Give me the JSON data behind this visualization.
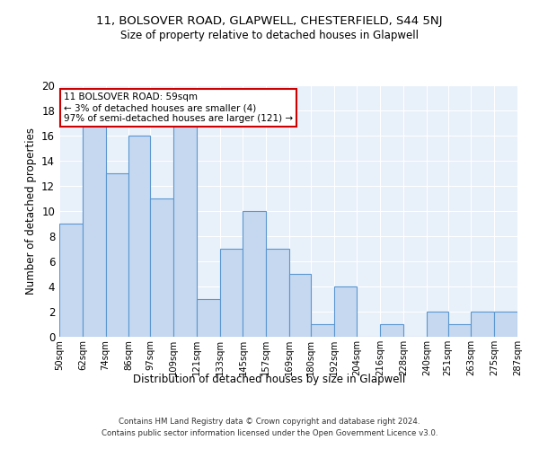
{
  "title1": "11, BOLSOVER ROAD, GLAPWELL, CHESTERFIELD, S44 5NJ",
  "title2": "Size of property relative to detached houses in Glapwell",
  "xlabel": "Distribution of detached houses by size in Glapwell",
  "ylabel": "Number of detached properties",
  "annotation_line1": "11 BOLSOVER ROAD: 59sqm",
  "annotation_line2": "← 3% of detached houses are smaller (4)",
  "annotation_line3": "97% of semi-detached houses are larger (121) →",
  "bin_edges": [
    50,
    62,
    74,
    86,
    97,
    109,
    121,
    133,
    145,
    157,
    169,
    180,
    192,
    204,
    216,
    228,
    240,
    251,
    263,
    275,
    287
  ],
  "bin_counts": [
    9,
    17,
    13,
    16,
    11,
    17,
    3,
    7,
    10,
    7,
    5,
    1,
    4,
    0,
    1,
    0,
    2,
    1,
    2,
    2
  ],
  "bar_color": "#c5d8f0",
  "bar_edge_color": "#5a96d0",
  "background_color": "#e8f0fa",
  "annotation_box_color": "#ffffff",
  "annotation_box_edge": "#cc0000",
  "ylim": [
    0,
    20
  ],
  "yticks": [
    0,
    2,
    4,
    6,
    8,
    10,
    12,
    14,
    16,
    18,
    20
  ],
  "tick_labels": [
    "50sqm",
    "62sqm",
    "74sqm",
    "86sqm",
    "97sqm",
    "109sqm",
    "121sqm",
    "133sqm",
    "145sqm",
    "157sqm",
    "169sqm",
    "180sqm",
    "192sqm",
    "204sqm",
    "216sqm",
    "228sqm",
    "240sqm",
    "251sqm",
    "263sqm",
    "275sqm",
    "287sqm"
  ],
  "footer1": "Contains HM Land Registry data © Crown copyright and database right 2024.",
  "footer2": "Contains public sector information licensed under the Open Government Licence v3.0.",
  "title1_fontsize": 9.5,
  "title2_fontsize": 8.5,
  "xlabel_fontsize": 8.5,
  "ylabel_fontsize": 8.5,
  "footer_fontsize": 6.2,
  "ann_fontsize": 7.5
}
